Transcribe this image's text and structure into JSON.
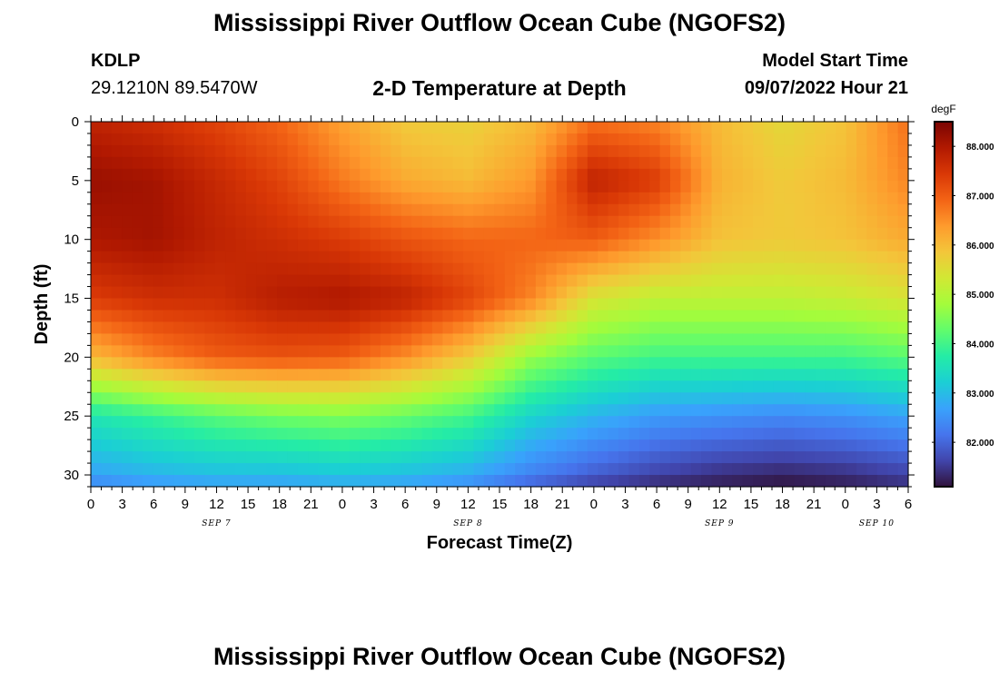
{
  "header": {
    "title": "Mississippi River Outflow Ocean Cube (NGOFS2)",
    "station": "KDLP",
    "coords": "29.1210N  89.5470W",
    "subtitle": "2-D Temperature at Depth",
    "model_label": "Model Start Time",
    "model_time": "09/07/2022 Hour 21"
  },
  "footer": {
    "title": "Mississippi River Outflow Ocean Cube (NGOFS2)"
  },
  "chart_data": {
    "type": "heatmap",
    "xlabel": "Forecast Time(Z)",
    "ylabel": "Depth (ft)",
    "x_tick_labels": [
      "0",
      "3",
      "6",
      "9",
      "12",
      "15",
      "18",
      "21",
      "0",
      "3",
      "6",
      "9",
      "12",
      "15",
      "18",
      "21",
      "0",
      "3",
      "6",
      "9",
      "12",
      "15",
      "18",
      "21",
      "0",
      "3",
      "6"
    ],
    "day_labels": [
      {
        "label": "SEP 7",
        "at_hour": 12
      },
      {
        "label": "SEP 8",
        "at_hour": 36
      },
      {
        "label": "SEP 9",
        "at_hour": 60
      },
      {
        "label": "SEP 10",
        "at_hour": 75
      }
    ],
    "x_range_hours": [
      0,
      78
    ],
    "y_ticks": [
      0,
      5,
      10,
      15,
      20,
      25,
      30
    ],
    "y_range": [
      0,
      31
    ],
    "y_inverted": true,
    "colorbar": {
      "units": "degF",
      "ticks": [
        "88.000",
        "87.000",
        "86.000",
        "85.000",
        "84.000",
        "83.000",
        "82.000"
      ],
      "tick_values": [
        88,
        87,
        86,
        85,
        84,
        83,
        82
      ],
      "range": [
        81.1,
        88.5
      ],
      "colors": [
        "#30123b",
        "#4145ab",
        "#4675ed",
        "#39a2fc",
        "#1bcfd4",
        "#24eca6",
        "#61fc6c",
        "#a4fc3b",
        "#d1e834",
        "#f3c63a",
        "#fe9b2d",
        "#f36315",
        "#d93806",
        "#b11901",
        "#7a0402"
      ]
    },
    "grid": false,
    "temperature_degF": {
      "x_hours": [
        0,
        6,
        12,
        18,
        24,
        30,
        36,
        42,
        48,
        54,
        60,
        66,
        72,
        78
      ],
      "depth_ft": [
        0,
        5,
        10,
        15,
        20,
        25,
        30,
        31
      ],
      "values": [
        [
          87.8,
          87.6,
          87.3,
          86.9,
          86.3,
          85.8,
          85.7,
          86.0,
          86.8,
          86.6,
          86.0,
          85.6,
          85.9,
          86.8
        ],
        [
          88.2,
          88.1,
          87.7,
          87.3,
          86.7,
          86.2,
          86.0,
          86.4,
          87.8,
          87.4,
          86.1,
          85.8,
          86.0,
          86.6
        ],
        [
          88.0,
          88.1,
          87.8,
          87.6,
          87.4,
          87.1,
          86.9,
          86.9,
          87.0,
          86.5,
          85.9,
          85.8,
          85.9,
          86.2
        ],
        [
          87.4,
          87.6,
          87.6,
          87.9,
          88.0,
          87.8,
          87.3,
          86.6,
          85.4,
          85.1,
          85.1,
          85.1,
          85.2,
          85.4
        ],
        [
          86.0,
          86.6,
          87.0,
          87.1,
          87.0,
          86.5,
          85.8,
          84.7,
          84.2,
          84.0,
          84.0,
          84.0,
          84.0,
          84.2
        ],
        [
          83.6,
          83.9,
          84.2,
          84.4,
          84.5,
          84.3,
          84.0,
          83.3,
          82.9,
          82.6,
          82.5,
          82.4,
          82.5,
          82.7
        ],
        [
          82.7,
          82.9,
          83.0,
          83.0,
          83.1,
          83.0,
          82.8,
          82.3,
          81.9,
          81.6,
          81.4,
          81.3,
          81.4,
          81.6
        ],
        [
          82.3,
          82.5,
          82.6,
          82.6,
          82.7,
          82.6,
          82.4,
          81.9,
          81.5,
          81.3,
          81.2,
          81.1,
          81.2,
          81.4
        ]
      ]
    }
  }
}
